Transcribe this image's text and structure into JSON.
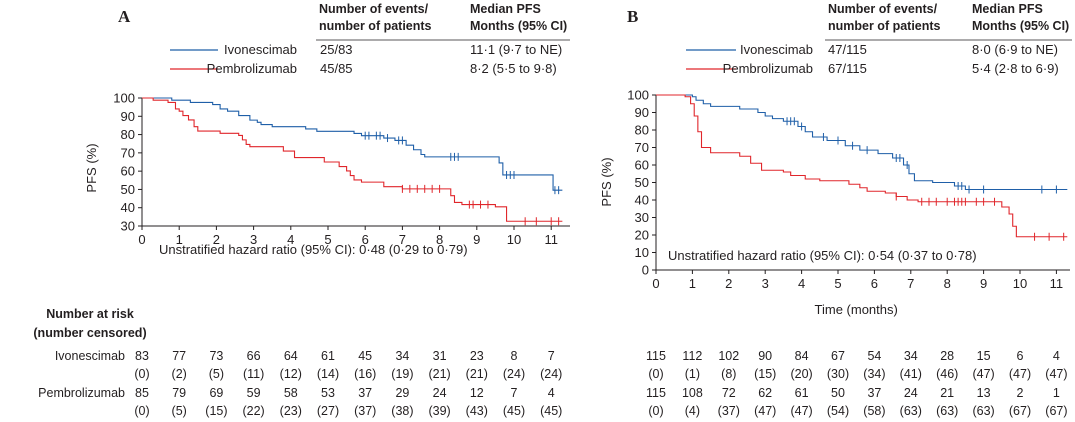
{
  "chart_data": [
    {
      "type": "line",
      "subtype": "kaplan-meier",
      "panel": "A",
      "header": {
        "col1": [
          "Number of events/",
          "number of patients"
        ],
        "col2": [
          "Median PFS",
          "Months (95% CI)"
        ]
      },
      "ylabel": "PFS (%)",
      "xlabel": "",
      "xlim": [
        0,
        11.3
      ],
      "ylim": [
        30,
        100
      ],
      "x_ticks": [
        0,
        1,
        2,
        3,
        4,
        5,
        6,
        7,
        8,
        9,
        10,
        11
      ],
      "y_ticks": [
        30,
        40,
        50,
        60,
        70,
        80,
        90,
        100
      ],
      "annotation": "Unstratified hazard ratio (95% CI): 0·48 (0·29 to 0·79)",
      "series": [
        {
          "name": "Ivonescimab",
          "color": "#1f5fa8",
          "events": "25/83",
          "median": "11·1 (9·7 to NE)",
          "steps": [
            [
              0,
              100
            ],
            [
              0.75,
              100
            ],
            [
              0.8,
              98.8
            ],
            [
              1.3,
              97.6
            ],
            [
              1.9,
              96.4
            ],
            [
              2.1,
              94
            ],
            [
              2.3,
              92.8
            ],
            [
              2.6,
              90.4
            ],
            [
              2.9,
              87.9
            ],
            [
              3.1,
              86.7
            ],
            [
              3.2,
              85.5
            ],
            [
              3.5,
              84.3
            ],
            [
              4.4,
              83.1
            ],
            [
              4.7,
              81.8
            ],
            [
              5.7,
              80.6
            ],
            [
              5.9,
              79.4
            ],
            [
              6.5,
              78.1
            ],
            [
              6.8,
              76.8
            ],
            [
              7.1,
              74.2
            ],
            [
              7.3,
              71.7
            ],
            [
              7.5,
              69.1
            ],
            [
              7.6,
              67.8
            ],
            [
              9.6,
              64.5
            ],
            [
              9.7,
              57.9
            ],
            [
              11.05,
              49.6
            ],
            [
              11.3,
              49.6
            ]
          ],
          "censor": [
            6.0,
            6.1,
            6.3,
            6.4,
            6.6,
            6.9,
            7.0,
            8.3,
            8.4,
            8.5,
            9.8,
            9.9,
            10.0,
            11.1,
            11.2
          ]
        },
        {
          "name": "Pembrolizumab",
          "color": "#e0262b",
          "events": "45/85",
          "median": "8·2 (5·5 to 9·8)",
          "steps": [
            [
              0,
              100
            ],
            [
              0.3,
              98.8
            ],
            [
              0.7,
              97.6
            ],
            [
              0.9,
              94
            ],
            [
              1.0,
              92.8
            ],
            [
              1.1,
              90.4
            ],
            [
              1.25,
              88
            ],
            [
              1.4,
              84.3
            ],
            [
              1.5,
              81.9
            ],
            [
              2.1,
              80.7
            ],
            [
              2.6,
              79.5
            ],
            [
              2.7,
              77.1
            ],
            [
              2.8,
              74.6
            ],
            [
              2.9,
              73.4
            ],
            [
              3.8,
              71
            ],
            [
              4.1,
              67.4
            ],
            [
              4.9,
              65
            ],
            [
              5.3,
              62.5
            ],
            [
              5.5,
              60.1
            ],
            [
              5.6,
              57.6
            ],
            [
              5.7,
              55.2
            ],
            [
              5.9,
              54
            ],
            [
              6.5,
              51.5
            ],
            [
              7.0,
              50.3
            ],
            [
              8.3,
              46.6
            ],
            [
              8.4,
              42.9
            ],
            [
              8.6,
              41.7
            ],
            [
              9.5,
              40.5
            ],
            [
              9.8,
              32.6
            ],
            [
              11.3,
              32.6
            ]
          ],
          "censor": [
            7.0,
            7.2,
            7.4,
            7.6,
            7.8,
            8.0,
            8.8,
            8.9,
            9.1,
            9.3,
            10.3,
            10.6,
            11.0,
            11.2
          ]
        }
      ],
      "risk_table": {
        "title": [
          "Number at risk",
          "(number censored)"
        ],
        "rows": [
          {
            "name": "Ivonescimab",
            "at_risk": [
              "83",
              "77",
              "73",
              "66",
              "64",
              "61",
              "45",
              "34",
              "31",
              "23",
              "8",
              "7"
            ],
            "censored": [
              "(0)",
              "(2)",
              "(5)",
              "(11)",
              "(12)",
              "(14)",
              "(16)",
              "(19)",
              "(21)",
              "(21)",
              "(24)",
              "(24)"
            ]
          },
          {
            "name": "Pembrolizumab",
            "at_risk": [
              "85",
              "79",
              "69",
              "59",
              "58",
              "53",
              "37",
              "29",
              "24",
              "12",
              "7",
              "4"
            ],
            "censored": [
              "(0)",
              "(5)",
              "(15)",
              "(22)",
              "(23)",
              "(27)",
              "(37)",
              "(38)",
              "(39)",
              "(43)",
              "(45)",
              "(45)"
            ]
          }
        ]
      }
    },
    {
      "type": "line",
      "subtype": "kaplan-meier",
      "panel": "B",
      "header": {
        "col1": [
          "Number of events/",
          "number of patients"
        ],
        "col2": [
          "Median PFS",
          "Months (95% CI)"
        ]
      },
      "ylabel": "PFS (%)",
      "xlabel": "Time (months)",
      "xlim": [
        0,
        11.3
      ],
      "ylim": [
        0,
        100
      ],
      "x_ticks": [
        0,
        1,
        2,
        3,
        4,
        5,
        6,
        7,
        8,
        9,
        10,
        11
      ],
      "y_ticks": [
        0,
        10,
        20,
        30,
        40,
        50,
        60,
        70,
        80,
        90,
        100
      ],
      "annotation": "Unstratified hazard ratio (95% CI): 0·54 (0·37 to 0·78)",
      "series": [
        {
          "name": "Ivonescimab",
          "color": "#1f5fa8",
          "events": "47/115",
          "median": "8·0 (6·9 to NE)",
          "steps": [
            [
              0,
              100
            ],
            [
              0.9,
              100
            ],
            [
              1.0,
              99
            ],
            [
              1.1,
              97
            ],
            [
              1.3,
              95
            ],
            [
              1.5,
              93.5
            ],
            [
              2.3,
              92
            ],
            [
              2.8,
              90
            ],
            [
              3.0,
              88
            ],
            [
              3.2,
              86.5
            ],
            [
              3.5,
              85
            ],
            [
              3.9,
              82
            ],
            [
              4.1,
              79
            ],
            [
              4.3,
              76
            ],
            [
              4.7,
              74
            ],
            [
              5.2,
              71
            ],
            [
              5.6,
              68.5
            ],
            [
              6.1,
              66.5
            ],
            [
              6.5,
              64
            ],
            [
              6.8,
              60
            ],
            [
              6.95,
              55
            ],
            [
              7.1,
              51
            ],
            [
              7.6,
              50
            ],
            [
              8.2,
              48
            ],
            [
              8.5,
              46
            ],
            [
              11.3,
              46
            ]
          ],
          "censor": [
            3.6,
            3.7,
            3.8,
            4.0,
            4.6,
            5.0,
            5.4,
            5.8,
            6.6,
            6.7,
            6.9,
            8.3,
            8.4,
            8.6,
            9.0,
            10.6,
            11.0
          ]
        },
        {
          "name": "Pembrolizumab",
          "color": "#e0262b",
          "events": "67/115",
          "median": "5·4 (2·8 to 6·9)",
          "steps": [
            [
              0,
              100
            ],
            [
              0.8,
              99
            ],
            [
              0.95,
              95
            ],
            [
              1.05,
              88
            ],
            [
              1.15,
              79
            ],
            [
              1.25,
              70
            ],
            [
              1.5,
              67
            ],
            [
              2.3,
              65
            ],
            [
              2.6,
              61
            ],
            [
              2.9,
              57
            ],
            [
              3.5,
              56
            ],
            [
              3.7,
              54
            ],
            [
              4.1,
              52
            ],
            [
              4.5,
              51
            ],
            [
              5.3,
              49
            ],
            [
              5.6,
              47
            ],
            [
              5.8,
              45
            ],
            [
              6.3,
              44
            ],
            [
              6.6,
              42
            ],
            [
              6.9,
              40
            ],
            [
              7.2,
              39
            ],
            [
              9.5,
              36
            ],
            [
              9.7,
              32
            ],
            [
              9.8,
              25
            ],
            [
              9.9,
              19
            ],
            [
              11.3,
              19
            ]
          ],
          "censor": [
            6.6,
            7.3,
            7.5,
            7.7,
            8.0,
            8.2,
            8.3,
            8.4,
            8.5,
            8.8,
            9.0,
            9.3,
            10.4,
            10.8,
            11.2
          ]
        }
      ],
      "risk_table": {
        "rows": [
          {
            "name": "Ivonescimab",
            "at_risk": [
              "115",
              "112",
              "102",
              "90",
              "84",
              "67",
              "54",
              "34",
              "28",
              "15",
              "6",
              "4"
            ],
            "censored": [
              "(0)",
              "(1)",
              "(8)",
              "(15)",
              "(20)",
              "(30)",
              "(34)",
              "(41)",
              "(46)",
              "(47)",
              "(47)",
              "(47)"
            ]
          },
          {
            "name": "Pembrolizumab",
            "at_risk": [
              "115",
              "108",
              "72",
              "62",
              "61",
              "50",
              "37",
              "24",
              "21",
              "13",
              "2",
              "1"
            ],
            "censored": [
              "(0)",
              "(4)",
              "(37)",
              "(47)",
              "(47)",
              "(54)",
              "(58)",
              "(63)",
              "(63)",
              "(63)",
              "(67)",
              "(67)"
            ]
          }
        ]
      }
    }
  ]
}
